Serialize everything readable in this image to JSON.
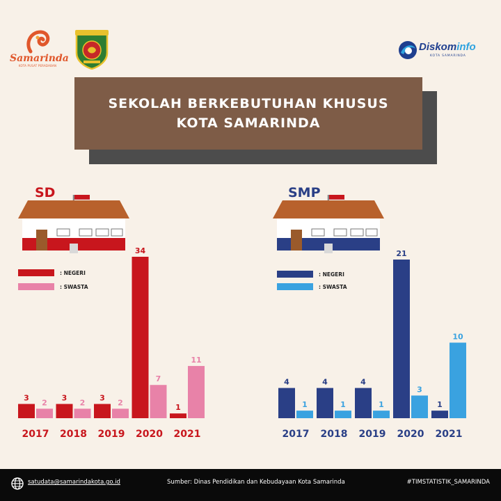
{
  "logos": {
    "samarinda_text": "Samarinda",
    "samarinda_sub": "KOTA PUSAT PERADABAN",
    "diskominfo_name_a": "Diskom",
    "diskominfo_name_b": "info",
    "diskominfo_sub": "KOTA SAMARINDA"
  },
  "title": {
    "line1": "SEKOLAH BERKEBUTUHAN KHUSUS",
    "line2": "KOTA SAMARINDA"
  },
  "colors": {
    "background": "#f8f1e8",
    "title_box": "#7e5c47",
    "sd_negeri": "#c8161d",
    "sd_swasta": "#e882a8",
    "smp_negeri": "#2a3f86",
    "smp_swasta": "#3aa2e0"
  },
  "sd": {
    "label": "SD",
    "legend": {
      "negeri": ": NEGERI",
      "swasta": ": SWASTA"
    }
  },
  "smp": {
    "label": "SMP",
    "legend": {
      "negeri": ": NEGERI",
      "swasta": ": SWASTA"
    }
  },
  "chart_data": [
    {
      "type": "bar",
      "title": "SD",
      "categories": [
        "2017",
        "2018",
        "2019",
        "2020",
        "2021"
      ],
      "series": [
        {
          "name": "NEGERI",
          "values": [
            3,
            3,
            3,
            34,
            1
          ],
          "color": "#c8161d"
        },
        {
          "name": "SWASTA",
          "values": [
            2,
            2,
            2,
            7,
            11
          ],
          "color": "#e882a8"
        }
      ],
      "ylim": [
        0,
        34
      ],
      "grid": false,
      "legend": "top-left"
    },
    {
      "type": "bar",
      "title": "SMP",
      "categories": [
        "2017",
        "2018",
        "2019",
        "2020",
        "2021"
      ],
      "series": [
        {
          "name": "NEGERI",
          "values": [
            4,
            4,
            4,
            21,
            1
          ],
          "color": "#2a3f86"
        },
        {
          "name": "SWASTA",
          "values": [
            1,
            1,
            1,
            3,
            10
          ],
          "color": "#3aa2e0"
        }
      ],
      "ylim": [
        0,
        21
      ],
      "grid": false,
      "legend": "top-left"
    }
  ],
  "footer": {
    "email": "satudata@samarindakota.go.id",
    "source": "Sumber: Dinas Pendidikan dan Kebudayaan Kota Samarinda",
    "hashtag": "#TIMSTATISTIK_SAMARINDA"
  }
}
